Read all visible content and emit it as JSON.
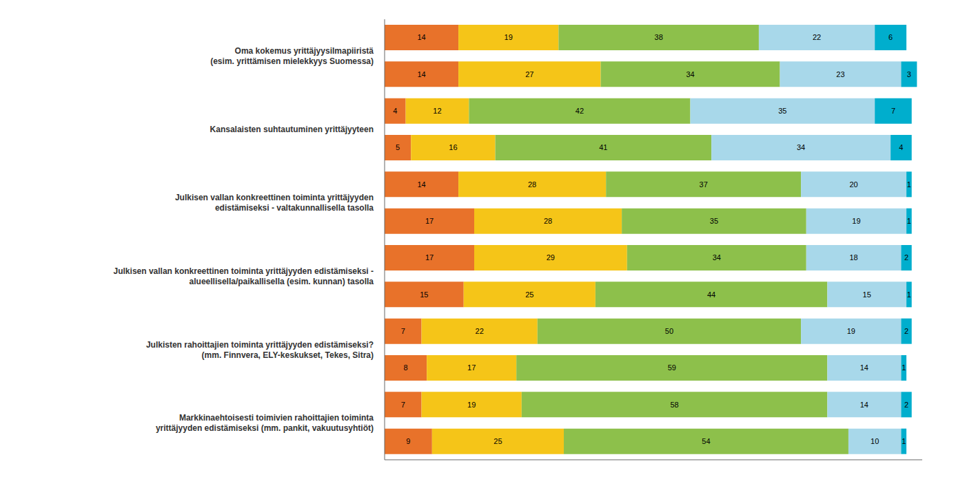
{
  "chart_data": {
    "type": "bar",
    "orientation": "horizontal",
    "stacked": true,
    "data_labels": true,
    "tick_labels": "y",
    "grid": false,
    "xlim": [
      0,
      102
    ],
    "categories": [
      "Oma kokemus yrittäjyysilmapiiristä\n(esim. yrittämisen mielekkyys Suomessa)",
      null,
      "Kansalaisten suhtautuminen yrittäjyyteen",
      null,
      "Julkisen vallan konkreettinen toiminta yrittäjyyden\nedistämiseksi - valtakunnallisella tasolla",
      null,
      "Julkisen vallan konkreettinen toiminta yrittäjyyden edistämiseksi -\nalueellisella/paikallisella (esim. kunnan) tasolla",
      null,
      "Julkisten rahoittajien toiminta yrittäjyyden edistämiseksi?\n(mm. Finnvera, ELY-keskukset, Tekes, Sitra)",
      null,
      "Markkinaehtoisesti toimivien rahoittajien toiminta\nyrittäjyyden edistämiseksi (mm. pankit, vakuutusyhtiöt)",
      null
    ],
    "series": [
      {
        "color": "#E8722A",
        "values": [
          14,
          14,
          4,
          5,
          14,
          17,
          17,
          15,
          7,
          8,
          7,
          9
        ]
      },
      {
        "color": "#F5C518",
        "values": [
          19,
          27,
          12,
          16,
          28,
          28,
          29,
          25,
          22,
          17,
          19,
          25
        ]
      },
      {
        "color": "#8DC04B",
        "values": [
          38,
          34,
          42,
          41,
          37,
          35,
          34,
          44,
          50,
          59,
          58,
          54
        ]
      },
      {
        "color": "#A8D8EA",
        "values": [
          22,
          23,
          35,
          34,
          20,
          19,
          18,
          15,
          19,
          14,
          14,
          10
        ]
      },
      {
        "color": "#00AECD",
        "values": [
          6,
          3,
          7,
          4,
          1,
          1,
          2,
          1,
          2,
          1,
          2,
          1
        ]
      }
    ]
  }
}
